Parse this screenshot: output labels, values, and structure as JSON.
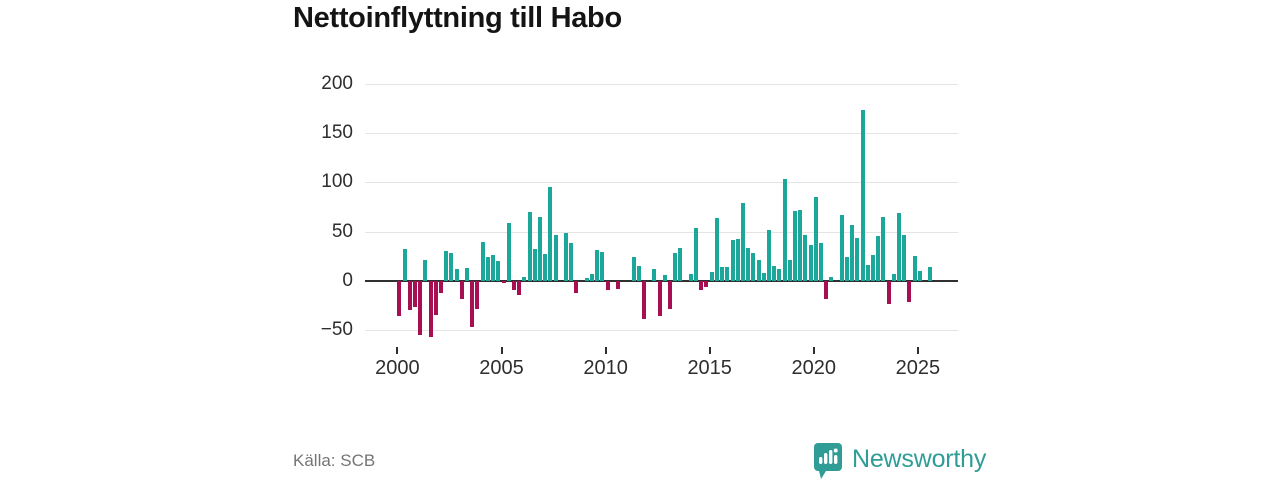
{
  "header": {
    "title": "Nettoinflyttning till Habo"
  },
  "footer": {
    "source": "Källa: SCB",
    "brand": "Newsworthy"
  },
  "colors": {
    "positive": "#1ba89b",
    "negative": "#a80e52",
    "brand_teal": "#2f9d95",
    "grid": "#e4e4e4",
    "axis_line": "#303030",
    "axis_text": "#2e2e2e"
  },
  "icons": {
    "logo": "newsworthy-badge-bar-chart"
  },
  "chart_data": {
    "type": "bar",
    "title": "Nettoinflyttning till Habo",
    "period": "quarterly",
    "start_year": 2000,
    "start_quarter": 1,
    "xlabel": "",
    "ylabel": "",
    "grid": true,
    "legend": false,
    "ylim": [
      -62,
      212
    ],
    "y_ticks": [
      -50,
      0,
      50,
      100,
      150,
      200
    ],
    "y_tick_labels": [
      "−50",
      "0",
      "50",
      "100",
      "150",
      "200"
    ],
    "x_tick_years": [
      2000,
      2005,
      2010,
      2015,
      2020,
      2025
    ],
    "x_tick_labels": [
      "2000",
      "2005",
      "2010",
      "2015",
      "2020",
      "2025"
    ],
    "values": [
      -36,
      32,
      -30,
      -27,
      -55,
      21,
      -57,
      -35,
      -12,
      30,
      28,
      12,
      -18,
      13,
      -47,
      -29,
      39,
      24,
      26,
      20,
      -2,
      59,
      -9,
      -14,
      4,
      70,
      32,
      65,
      27,
      95,
      47,
      0,
      49,
      38,
      -12,
      0,
      3,
      7,
      31,
      29,
      -9,
      0,
      -8,
      0,
      0,
      24,
      15,
      -39,
      0,
      12,
      -36,
      6,
      -29,
      28,
      33,
      0,
      7,
      54,
      -9,
      -6,
      9,
      64,
      14,
      14,
      41,
      42,
      79,
      33,
      28,
      21,
      8,
      52,
      15,
      12,
      103,
      21,
      71,
      72,
      47,
      36,
      85,
      38,
      -19,
      4,
      0,
      67,
      24,
      57,
      44,
      174,
      16,
      26,
      46,
      65,
      -24,
      7,
      69,
      47,
      -22,
      25,
      10,
      0,
      14
    ]
  }
}
